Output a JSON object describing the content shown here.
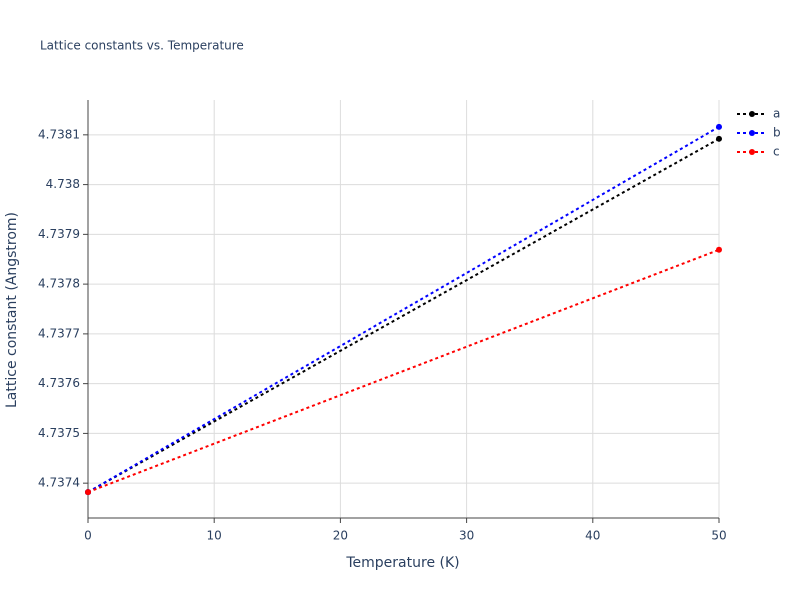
{
  "chart_data": {
    "type": "line",
    "title": "Lattice constants vs. Temperature",
    "x_label": "Temperature (K)",
    "y_label": "Lattice constant (Angstrom)",
    "x": [
      0,
      50
    ],
    "series": [
      {
        "name": "a",
        "color": "#000000",
        "values": [
          4.737382,
          4.738092
        ]
      },
      {
        "name": "b",
        "color": "#0000ff",
        "values": [
          4.737382,
          4.738116
        ]
      },
      {
        "name": "c",
        "color": "#ff0000",
        "values": [
          4.737382,
          4.737869
        ]
      }
    ],
    "xlim": [
      0,
      50
    ],
    "xticks": [
      0,
      10,
      20,
      30,
      40,
      50
    ],
    "ylim": [
      4.73733,
      4.73817
    ],
    "yticks": [
      4.7374,
      4.7375,
      4.7376,
      4.7377,
      4.7378,
      4.7379,
      4.738,
      4.7381
    ],
    "grid": true,
    "legend": "right"
  }
}
